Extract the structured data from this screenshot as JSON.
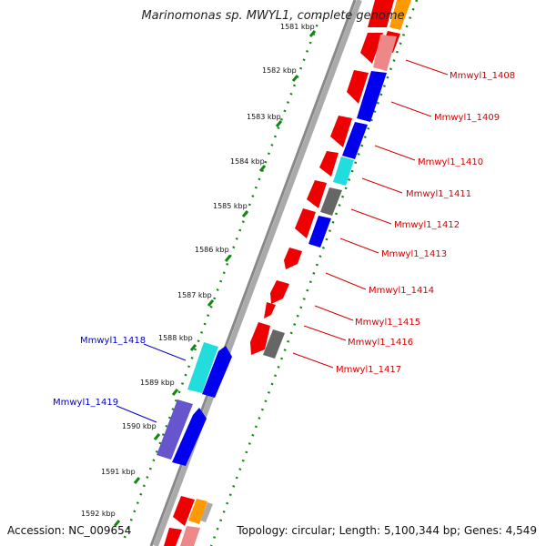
{
  "title": "Marinomonas sp. MWYL1, complete genome",
  "accession": "Accession: NC_009654",
  "topology": "Topology: circular; Length: 5,100,344 bp; Genes: 4,549",
  "colors": {
    "forward": "#ee0000",
    "blue": "#0000ee",
    "cyan": "#22dddd",
    "gray": "#666666",
    "pink": "#ee8888",
    "purple": "#6655cc",
    "orange": "#ff9900",
    "tick": "#118811",
    "backbone": "#888888",
    "label_red": "#d40000",
    "label_blue": "#0000c8"
  },
  "kbp_ticks": [
    "1581 kbp",
    "1582 kbp",
    "1583 kbp",
    "1584 kbp",
    "1585 kbp",
    "1586 kbp",
    "1587 kbp",
    "1588 kbp",
    "1589 kbp",
    "1590 kbp",
    "1591 kbp",
    "1592 kbp"
  ],
  "gene_labels": [
    {
      "text": "Mmwyl1_1408",
      "color": "red"
    },
    {
      "text": "Mmwyl1_1409",
      "color": "red"
    },
    {
      "text": "Mmwyl1_1410",
      "color": "red"
    },
    {
      "text": "Mmwyl1_1411",
      "color": "red"
    },
    {
      "text": "Mmwyl1_1412",
      "color": "red"
    },
    {
      "text": "Mmwyl1_1413",
      "color": "red"
    },
    {
      "text": "Mmwyl1_1414",
      "color": "red"
    },
    {
      "text": "Mmwyl1_1415",
      "color": "red"
    },
    {
      "text": "Mmwyl1_1416",
      "color": "red"
    },
    {
      "text": "Mmwyl1_1417",
      "color": "red"
    },
    {
      "text": "Mmwyl1_1418",
      "color": "blue"
    },
    {
      "text": "Mmwyl1_1419",
      "color": "blue"
    }
  ]
}
